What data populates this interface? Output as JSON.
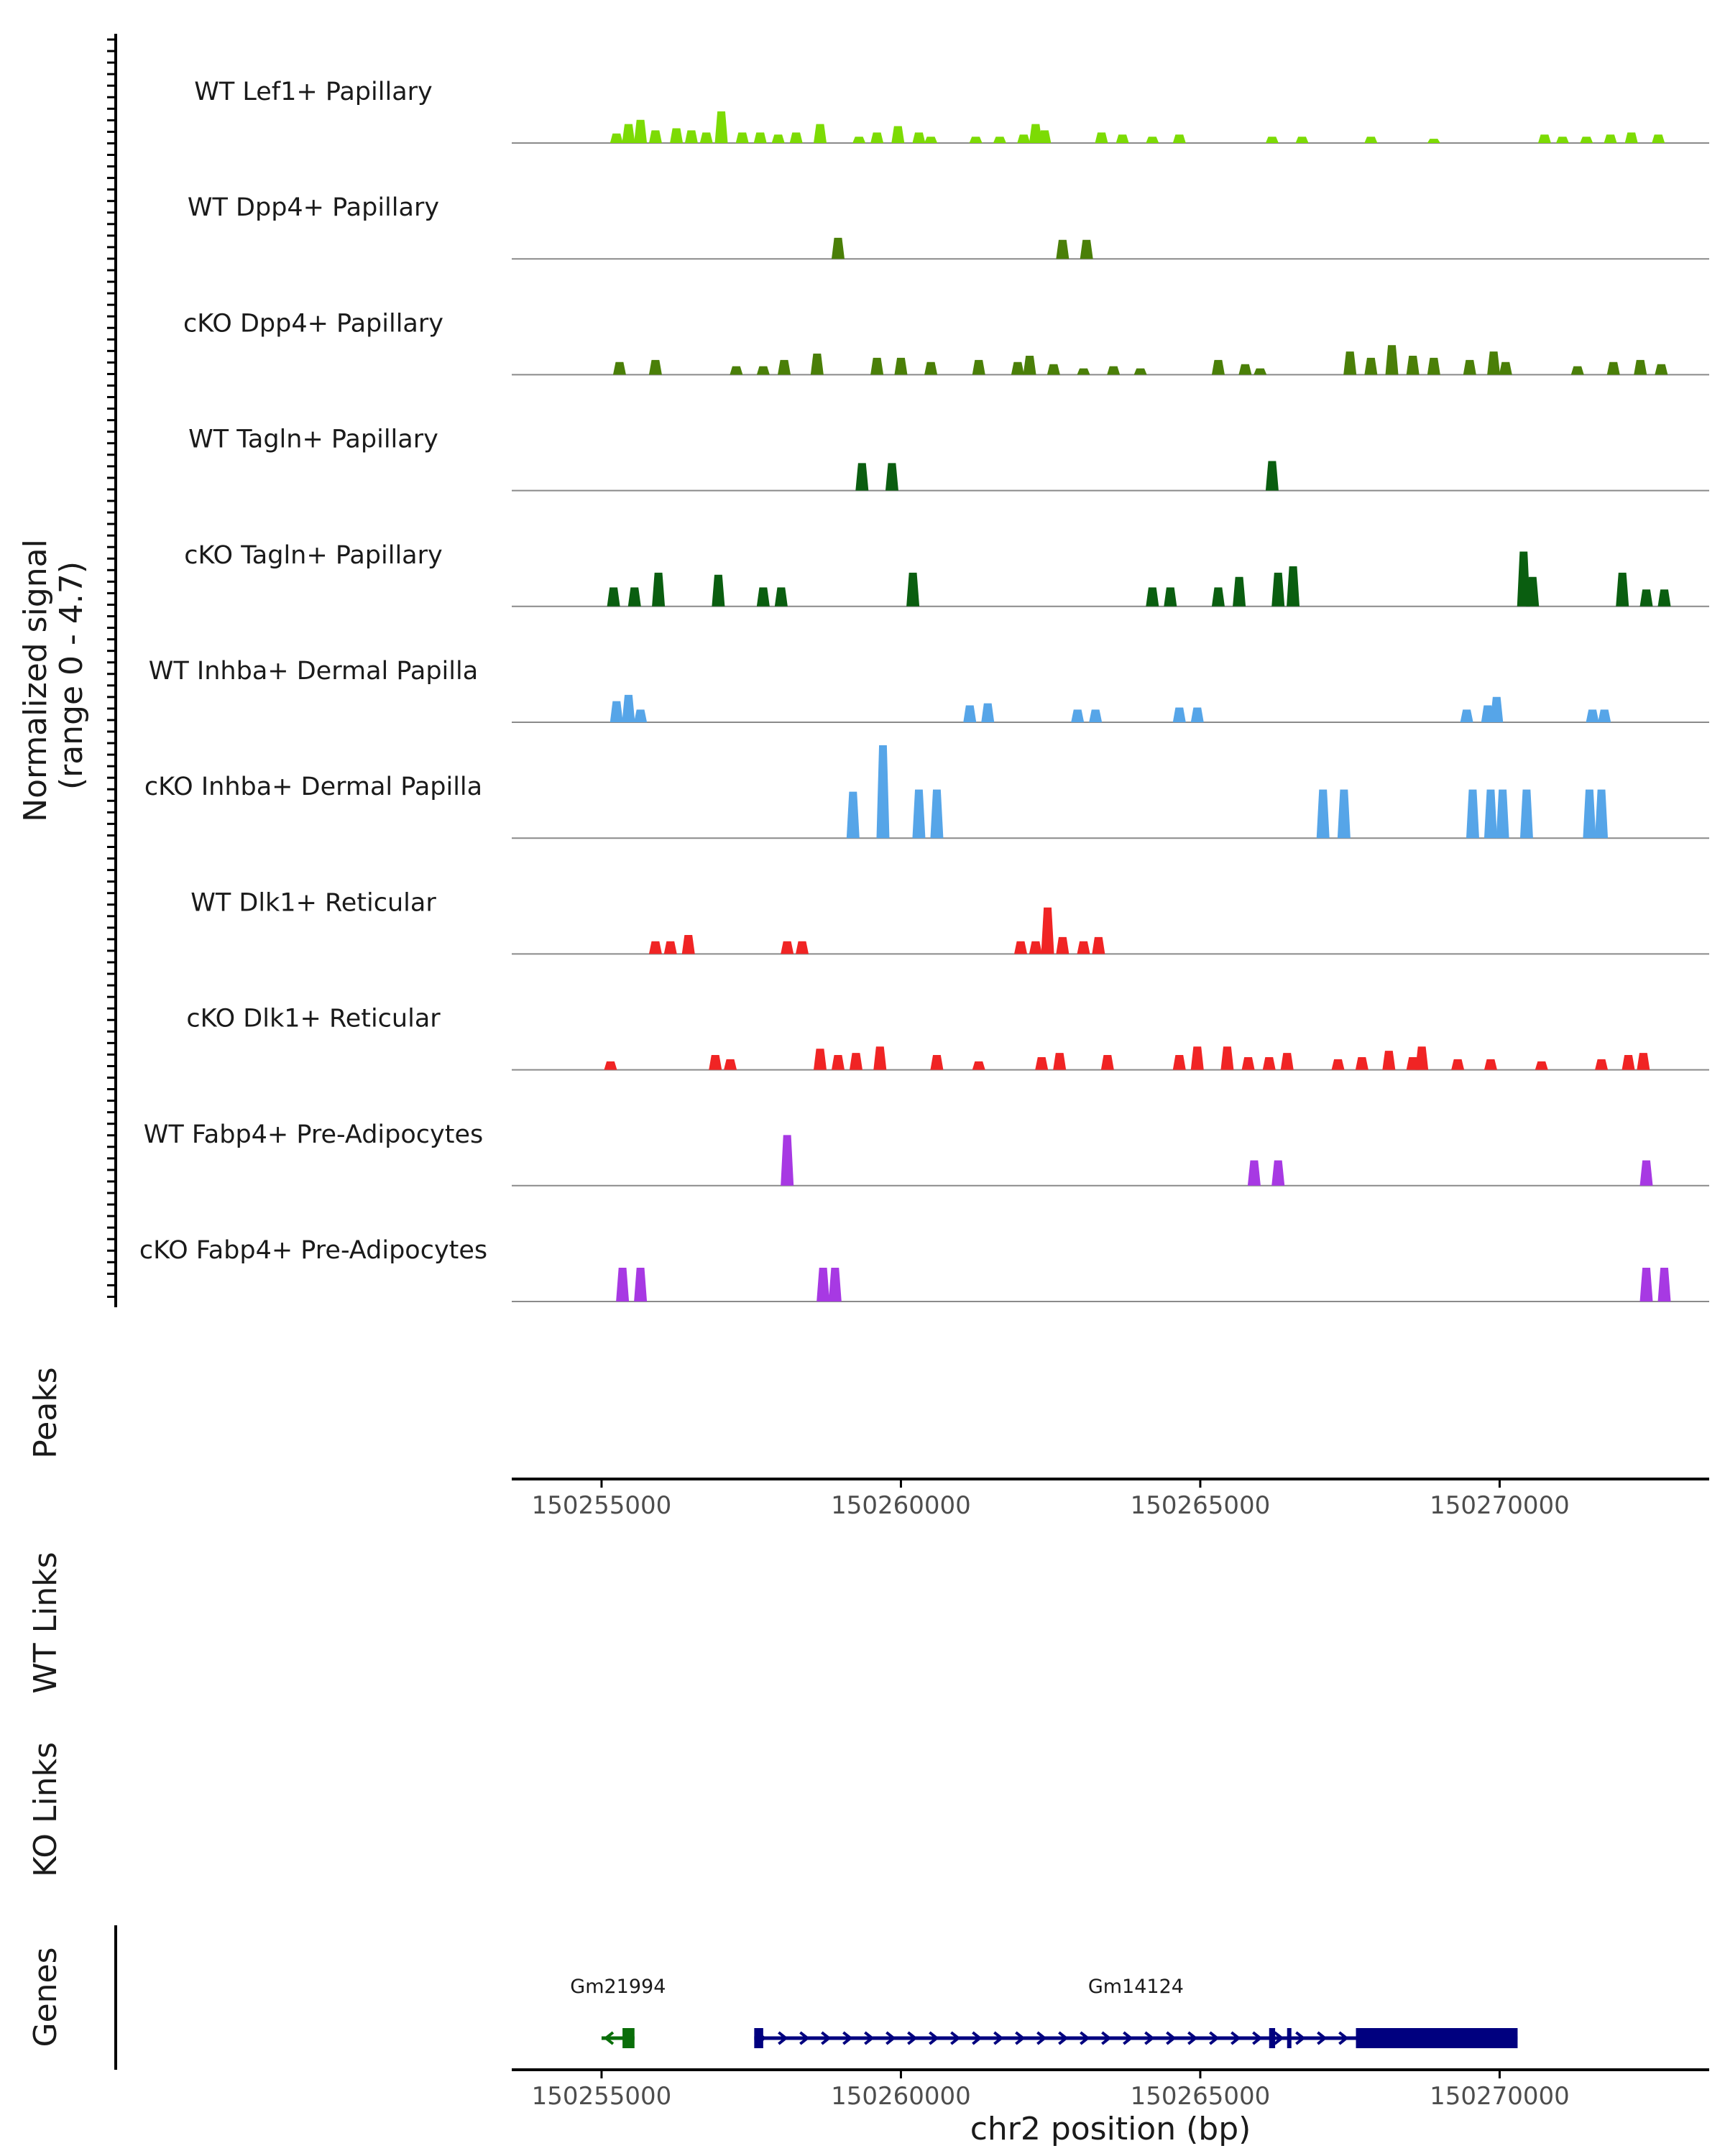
{
  "chart_data": {
    "type": "area",
    "title": "",
    "ylabel": "Normalized signal\n(range 0 - 4.7)",
    "y_range": [
      0,
      4.7
    ],
    "x_range": [
      150253500,
      150273500
    ],
    "xlabel": "chr2 position (bp)",
    "x_ticks": [
      "150255000",
      "150260000",
      "150265000",
      "150270000"
    ],
    "tracks": [
      {
        "name": "WT Lef1+ Papillary",
        "color": "#7CDB04",
        "peaks": [
          [
            150255250,
            0.45
          ],
          [
            150255450,
            0.9
          ],
          [
            150255650,
            1.1
          ],
          [
            150255900,
            0.6
          ],
          [
            150256250,
            0.7
          ],
          [
            150256500,
            0.6
          ],
          [
            150256750,
            0.5
          ],
          [
            150257000,
            1.5
          ],
          [
            150257350,
            0.5
          ],
          [
            150257650,
            0.5
          ],
          [
            150257950,
            0.4
          ],
          [
            150258250,
            0.5
          ],
          [
            150258650,
            0.9
          ],
          [
            150259300,
            0.3
          ],
          [
            150259600,
            0.5
          ],
          [
            150259950,
            0.8
          ],
          [
            150260300,
            0.5
          ],
          [
            150260500,
            0.3
          ],
          [
            150261250,
            0.3
          ],
          [
            150261650,
            0.3
          ],
          [
            150262050,
            0.4
          ],
          [
            150262250,
            0.9
          ],
          [
            150262400,
            0.6
          ],
          [
            150263350,
            0.5
          ],
          [
            150263700,
            0.4
          ],
          [
            150264200,
            0.3
          ],
          [
            150264650,
            0.4
          ],
          [
            150266200,
            0.3
          ],
          [
            150266700,
            0.3
          ],
          [
            150267850,
            0.3
          ],
          [
            150268900,
            0.2
          ],
          [
            150270750,
            0.4
          ],
          [
            150271050,
            0.3
          ],
          [
            150271450,
            0.3
          ],
          [
            150271850,
            0.4
          ],
          [
            150272200,
            0.5
          ],
          [
            150272650,
            0.4
          ]
        ]
      },
      {
        "name": "WT Dpp4+ Papillary",
        "color": "#4A7F08",
        "peaks": [
          [
            150258950,
            1.0
          ],
          [
            150262700,
            0.9
          ],
          [
            150263100,
            0.9
          ]
        ]
      },
      {
        "name": "cKO Dpp4+ Papillary",
        "color": "#4A7F08",
        "peaks": [
          [
            150255300,
            0.6
          ],
          [
            150255900,
            0.7
          ],
          [
            150257250,
            0.4
          ],
          [
            150257700,
            0.4
          ],
          [
            150258050,
            0.7
          ],
          [
            150258600,
            1.0
          ],
          [
            150259600,
            0.8
          ],
          [
            150260000,
            0.8
          ],
          [
            150260500,
            0.6
          ],
          [
            150261300,
            0.7
          ],
          [
            150261950,
            0.6
          ],
          [
            150262150,
            0.9
          ],
          [
            150262550,
            0.5
          ],
          [
            150263050,
            0.3
          ],
          [
            150263550,
            0.4
          ],
          [
            150264000,
            0.3
          ],
          [
            150265300,
            0.7
          ],
          [
            150265750,
            0.5
          ],
          [
            150266000,
            0.3
          ],
          [
            150267500,
            1.1
          ],
          [
            150267850,
            0.8
          ],
          [
            150268200,
            1.4
          ],
          [
            150268550,
            0.9
          ],
          [
            150268900,
            0.8
          ],
          [
            150269500,
            0.7
          ],
          [
            150269900,
            1.1
          ],
          [
            150270100,
            0.6
          ],
          [
            150271300,
            0.4
          ],
          [
            150271900,
            0.6
          ],
          [
            150272350,
            0.7
          ],
          [
            150272700,
            0.5
          ]
        ]
      },
      {
        "name": "WT Tagln+ Papillary",
        "color": "#0A5E10",
        "peaks": [
          [
            150259350,
            1.3
          ],
          [
            150259850,
            1.3
          ],
          [
            150266200,
            1.4
          ]
        ]
      },
      {
        "name": "cKO Tagln+ Papillary",
        "color": "#0A5E10",
        "peaks": [
          [
            150255200,
            0.9
          ],
          [
            150255550,
            0.9
          ],
          [
            150255950,
            1.6
          ],
          [
            150256950,
            1.5
          ],
          [
            150257700,
            0.9
          ],
          [
            150258000,
            0.9
          ],
          [
            150260200,
            1.6
          ],
          [
            150264200,
            0.9
          ],
          [
            150264500,
            0.9
          ],
          [
            150265300,
            0.9
          ],
          [
            150265650,
            1.4
          ],
          [
            150266300,
            1.6
          ],
          [
            150266550,
            1.9
          ],
          [
            150270400,
            2.6
          ],
          [
            150270550,
            1.4
          ],
          [
            150272050,
            1.6
          ],
          [
            150272450,
            0.8
          ],
          [
            150272750,
            0.8
          ]
        ]
      },
      {
        "name": "WT Inhba+ Dermal Papilla",
        "color": "#56A5E8",
        "peaks": [
          [
            150255250,
            1.0
          ],
          [
            150255450,
            1.3
          ],
          [
            150255650,
            0.6
          ],
          [
            150261150,
            0.8
          ],
          [
            150261450,
            0.9
          ],
          [
            150262950,
            0.6
          ],
          [
            150263250,
            0.6
          ],
          [
            150264650,
            0.7
          ],
          [
            150264950,
            0.7
          ],
          [
            150269450,
            0.6
          ],
          [
            150269800,
            0.8
          ],
          [
            150269950,
            1.2
          ],
          [
            150271550,
            0.6
          ],
          [
            150271750,
            0.6
          ]
        ]
      },
      {
        "name": "cKO Inhba+ Dermal Papilla",
        "color": "#56A5E8",
        "peaks": [
          [
            150259200,
            2.2
          ],
          [
            150259700,
            4.4
          ],
          [
            150260300,
            2.3
          ],
          [
            150260600,
            2.3
          ],
          [
            150267050,
            2.3
          ],
          [
            150267400,
            2.3
          ],
          [
            150269550,
            2.3
          ],
          [
            150269850,
            2.3
          ],
          [
            150270050,
            2.3
          ],
          [
            150270450,
            2.3
          ],
          [
            150271500,
            2.3
          ],
          [
            150271700,
            2.3
          ]
        ]
      },
      {
        "name": "WT Dlk1+ Reticular",
        "color": "#F02424",
        "peaks": [
          [
            150255900,
            0.6
          ],
          [
            150256150,
            0.6
          ],
          [
            150256450,
            0.9
          ],
          [
            150258100,
            0.6
          ],
          [
            150258350,
            0.6
          ],
          [
            150262000,
            0.6
          ],
          [
            150262250,
            0.6
          ],
          [
            150262450,
            2.2
          ],
          [
            150262700,
            0.8
          ],
          [
            150263050,
            0.6
          ],
          [
            150263300,
            0.8
          ]
        ]
      },
      {
        "name": "cKO Dlk1+ Reticular",
        "color": "#F02424",
        "peaks": [
          [
            150255150,
            0.4
          ],
          [
            150256900,
            0.7
          ],
          [
            150257150,
            0.5
          ],
          [
            150258650,
            1.0
          ],
          [
            150258950,
            0.7
          ],
          [
            150259250,
            0.8
          ],
          [
            150259650,
            1.1
          ],
          [
            150260600,
            0.7
          ],
          [
            150261300,
            0.4
          ],
          [
            150262350,
            0.6
          ],
          [
            150262650,
            0.8
          ],
          [
            150263450,
            0.7
          ],
          [
            150264650,
            0.7
          ],
          [
            150264950,
            1.1
          ],
          [
            150265450,
            1.1
          ],
          [
            150265800,
            0.6
          ],
          [
            150266150,
            0.6
          ],
          [
            150266450,
            0.8
          ],
          [
            150267300,
            0.5
          ],
          [
            150267700,
            0.6
          ],
          [
            150268150,
            0.9
          ],
          [
            150268550,
            0.6
          ],
          [
            150268700,
            1.1
          ],
          [
            150269300,
            0.5
          ],
          [
            150269850,
            0.5
          ],
          [
            150270700,
            0.4
          ],
          [
            150271700,
            0.5
          ],
          [
            150272150,
            0.7
          ],
          [
            150272400,
            0.8
          ]
        ]
      },
      {
        "name": "WT Fabp4+ Pre-Adipocytes",
        "color": "#A739E3",
        "peaks": [
          [
            150258100,
            2.4
          ],
          [
            150265900,
            1.2
          ],
          [
            150266300,
            1.2
          ],
          [
            150272450,
            1.2
          ]
        ]
      },
      {
        "name": "cKO Fabp4+ Pre-Adipocytes",
        "color": "#A739E3",
        "peaks": [
          [
            150255350,
            1.6
          ],
          [
            150255650,
            1.6
          ],
          [
            150258700,
            1.6
          ],
          [
            150258900,
            1.6
          ],
          [
            150272450,
            1.6
          ],
          [
            150272750,
            1.6
          ]
        ]
      }
    ],
    "section_labels": {
      "peaks": "Peaks",
      "wt_links": "WT Links",
      "ko_links": "KO Links",
      "genes": "Genes"
    },
    "genes": [
      {
        "name": "Gm21994",
        "start": 150255000,
        "end": 150255550,
        "strand": "-",
        "color": "#0A6E0A",
        "exons": [
          [
            150255350,
            150255550
          ]
        ]
      },
      {
        "name": "Gm14124",
        "start": 150257550,
        "end": 150270300,
        "strand": "+",
        "color": "#00007F",
        "exons": [
          [
            150257550,
            150257700
          ],
          [
            150266150,
            150266250
          ],
          [
            150266450,
            150266500
          ],
          [
            150267600,
            150270300
          ]
        ]
      }
    ]
  }
}
